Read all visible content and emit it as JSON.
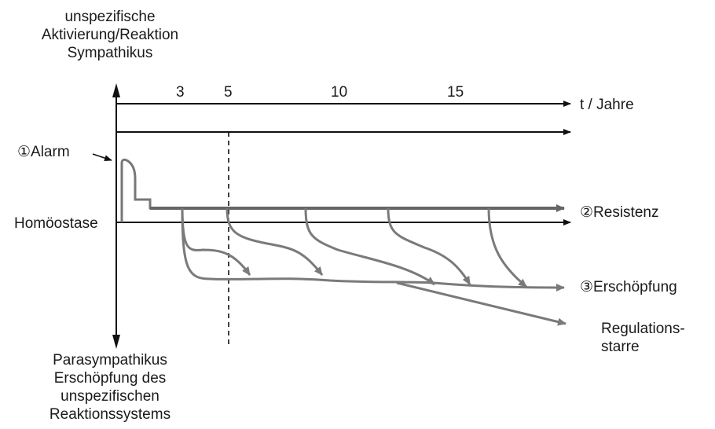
{
  "top_label": [
    "unspezifische",
    "Aktivierung/Reaktion",
    "Sympathikus"
  ],
  "bottom_label": [
    "Parasympathikus",
    "Erschöpfung des",
    "unspezifischen",
    "Reaktionssystems"
  ],
  "time_axis": {
    "ticks": [
      "3",
      "5",
      "10",
      "15"
    ],
    "unit": "t / Jahre"
  },
  "stages": {
    "alarm": "①Alarm",
    "resistenz": "②Resistenz",
    "erschoepfung": "③Erschöpfung",
    "regulationsstarre": [
      "Regulations-",
      "starre"
    ]
  },
  "baseline_label": "Homöostase",
  "colors": {
    "axis": "#111111",
    "curve": "#7a7a7a",
    "resistance": "#666666"
  }
}
